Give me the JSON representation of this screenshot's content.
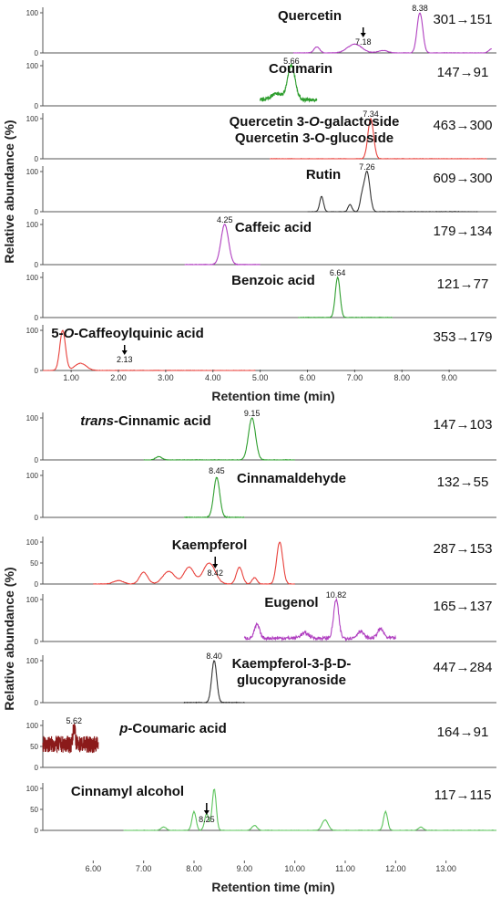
{
  "figure": {
    "panels": [
      {
        "ylabel": "Relative abundance (%)",
        "xlabel": "Retention time (min)",
        "xticks": [
          "1.00",
          "2.00",
          "3.00",
          "4.00",
          "5.00",
          "6.00",
          "7.00",
          "8.00",
          "9.00"
        ],
        "xlim": [
          0.4,
          10.0
        ]
      },
      {
        "ylabel": "Relative abundance (%)",
        "xlabel": "Retention time (min)",
        "xticks": [
          "6.00",
          "7.00",
          "8.00",
          "9.00",
          "10.00",
          "11.00",
          "12.00",
          "13.00"
        ],
        "xlim": [
          5.0,
          14.0
        ]
      }
    ]
  },
  "colors": {
    "purple": "#b03fc0",
    "green": "#2e9e2e",
    "red": "#e8413b",
    "black": "#333333",
    "darkred": "#8b1a1a",
    "lightgreen": "#5cc45c"
  },
  "chart_data": [
    {
      "type": "line",
      "panel": 0,
      "compound": "Quercetin",
      "compound_italic": "",
      "compound_line2": "",
      "transition": "301→151",
      "color": "purple",
      "yticks": [
        "100",
        "0"
      ],
      "xrange": [
        5.7,
        9.9
      ],
      "peaks": [
        {
          "x": 8.38,
          "y": 100,
          "w": 0.06
        },
        {
          "x": 7.0,
          "y": 22,
          "w": 0.15
        },
        {
          "x": 6.2,
          "y": 15,
          "w": 0.06
        },
        {
          "x": 7.6,
          "y": 6,
          "w": 0.1
        },
        {
          "x": 9.9,
          "y": 10,
          "w": 0.06
        }
      ],
      "labels": [
        {
          "text": "8.38",
          "x": 8.38
        },
        {
          "text": "7.18",
          "x": 7.18,
          "arrow": true
        }
      ]
    },
    {
      "type": "line",
      "panel": 0,
      "compound": "Coumarin",
      "compound_italic": "",
      "compound_line2": "",
      "transition": "147→91",
      "color": "green",
      "yticks": [
        "100",
        "0"
      ],
      "xrange": [
        5.0,
        6.2
      ],
      "noisy": true,
      "baseline": 15,
      "peaks": [
        {
          "x": 5.66,
          "y": 100,
          "w": 0.08
        },
        {
          "x": 5.35,
          "y": 30,
          "w": 0.12
        }
      ],
      "labels": [
        {
          "text": "5.66",
          "x": 5.66
        }
      ]
    },
    {
      "type": "line",
      "panel": 0,
      "compound": "Quercetin 3-",
      "compound_italic": "O",
      "compound_tail": "-galactoside",
      "compound_line2": "Quercetin 3-O-glucoside",
      "transition": "463→300",
      "color": "red",
      "yticks": [
        "100",
        "0"
      ],
      "xrange": [
        5.2,
        9.8
      ],
      "peaks": [
        {
          "x": 7.34,
          "y": 100,
          "w": 0.06
        }
      ],
      "labels": [
        {
          "text": "7.34",
          "x": 7.34
        }
      ]
    },
    {
      "type": "line",
      "panel": 0,
      "compound": "Rutin",
      "compound_italic": "",
      "compound_line2": "",
      "transition": "609→300",
      "color": "black",
      "yticks": [
        "100",
        "0"
      ],
      "xrange": [
        6.0,
        9.6
      ],
      "peaks": [
        {
          "x": 7.26,
          "y": 100,
          "w": 0.06
        },
        {
          "x": 6.3,
          "y": 38,
          "w": 0.04
        },
        {
          "x": 6.9,
          "y": 18,
          "w": 0.04
        },
        {
          "x": 7.15,
          "y": 30,
          "w": 0.04
        }
      ],
      "labels": [
        {
          "text": "7.26",
          "x": 7.26
        }
      ]
    },
    {
      "type": "line",
      "panel": 0,
      "compound": "Caffeic acid",
      "compound_italic": "",
      "compound_line2": "",
      "transition": "179→134",
      "color": "purple",
      "yticks": [
        "100",
        "0"
      ],
      "xrange": [
        3.4,
        5.0
      ],
      "peaks": [
        {
          "x": 4.25,
          "y": 100,
          "w": 0.08
        }
      ],
      "labels": [
        {
          "text": "4.25",
          "x": 4.25
        }
      ]
    },
    {
      "type": "line",
      "panel": 0,
      "compound": "Benzoic acid",
      "compound_italic": "",
      "compound_line2": "",
      "transition": "121→77",
      "color": "green",
      "yticks": [
        "100",
        "0"
      ],
      "xrange": [
        5.8,
        7.8
      ],
      "peaks": [
        {
          "x": 6.64,
          "y": 100,
          "w": 0.05
        }
      ],
      "labels": [
        {
          "text": "6.64",
          "x": 6.64
        }
      ]
    },
    {
      "type": "line",
      "panel": 0,
      "compound": "5-",
      "compound_italic": "O",
      "compound_tail": "-Caffeoylquinic acid",
      "compound_line2": "",
      "transition": "353→179",
      "color": "red",
      "yticks": [
        "100",
        "0"
      ],
      "xrange": [
        0.4,
        4.9
      ],
      "peaks": [
        {
          "x": 0.82,
          "y": 100,
          "w": 0.06
        },
        {
          "x": 1.2,
          "y": 18,
          "w": 0.12
        }
      ],
      "labels": [
        {
          "text": "2.13",
          "x": 2.13,
          "arrow": true
        }
      ]
    },
    {
      "type": "line",
      "panel": 1,
      "compound": "",
      "compound_italic": "trans",
      "compound_tail": "-Cinnamic acid",
      "compound_line2": "",
      "transition": "147→103",
      "color": "green",
      "yticks": [
        "100",
        "0"
      ],
      "xrange": [
        7.0,
        10.0
      ],
      "peaks": [
        {
          "x": 9.15,
          "y": 100,
          "w": 0.07
        },
        {
          "x": 7.3,
          "y": 8,
          "w": 0.06
        }
      ],
      "labels": [
        {
          "text": "9.15",
          "x": 9.15
        }
      ]
    },
    {
      "type": "line",
      "panel": 1,
      "compound": "Cinnamaldehyde",
      "compound_italic": "",
      "compound_line2": "",
      "transition": "132→55",
      "color": "green",
      "yticks": [
        "100",
        "0"
      ],
      "xrange": [
        7.8,
        9.0
      ],
      "peaks": [
        {
          "x": 8.45,
          "y": 95,
          "w": 0.06
        }
      ],
      "labels": [
        {
          "text": "8.45",
          "x": 8.45
        }
      ]
    },
    {
      "type": "line",
      "panel": 1,
      "compound": "Kaempferol",
      "compound_italic": "",
      "compound_line2": "",
      "transition": "287→153",
      "color": "red",
      "yticks": [
        "100",
        "50",
        "0"
      ],
      "xrange": [
        6.0,
        10.0
      ],
      "peaks": [
        {
          "x": 9.7,
          "y": 100,
          "w": 0.06
        },
        {
          "x": 8.3,
          "y": 50,
          "w": 0.12
        },
        {
          "x": 7.9,
          "y": 40,
          "w": 0.1
        },
        {
          "x": 7.5,
          "y": 30,
          "w": 0.12
        },
        {
          "x": 7.0,
          "y": 28,
          "w": 0.08
        },
        {
          "x": 8.9,
          "y": 40,
          "w": 0.06
        },
        {
          "x": 9.2,
          "y": 15,
          "w": 0.05
        },
        {
          "x": 6.5,
          "y": 8,
          "w": 0.1
        }
      ],
      "labels": [
        {
          "text": "8.42",
          "x": 8.42,
          "arrow": true
        }
      ]
    },
    {
      "type": "line",
      "panel": 1,
      "compound": "Eugenol",
      "compound_italic": "",
      "compound_line2": "",
      "transition": "165→137",
      "color": "purple",
      "yticks": [
        "100",
        "0"
      ],
      "xrange": [
        9.0,
        12.0
      ],
      "noisy": true,
      "baseline": 8,
      "peaks": [
        {
          "x": 10.82,
          "y": 100,
          "w": 0.05
        },
        {
          "x": 9.25,
          "y": 40,
          "w": 0.05
        },
        {
          "x": 10.2,
          "y": 20,
          "w": 0.08
        },
        {
          "x": 11.3,
          "y": 25,
          "w": 0.06
        },
        {
          "x": 11.7,
          "y": 30,
          "w": 0.06
        }
      ],
      "labels": [
        {
          "text": "10.82",
          "x": 10.82
        }
      ]
    },
    {
      "type": "line",
      "panel": 1,
      "compound": "Kaempferol-3-β-D-",
      "compound_italic": "",
      "compound_line2": "glucopyranoside",
      "transition": "447→284",
      "color": "black",
      "yticks": [
        "100",
        "0"
      ],
      "xrange": [
        7.8,
        9.0
      ],
      "peaks": [
        {
          "x": 8.4,
          "y": 100,
          "w": 0.05
        }
      ],
      "labels": [
        {
          "text": "8.40",
          "x": 8.4
        }
      ]
    },
    {
      "type": "line",
      "panel": 1,
      "compound": "",
      "compound_italic": "p",
      "compound_tail": "-Coumaric acid",
      "compound_line2": "",
      "transition": "164→91",
      "color": "darkred",
      "yticks": [
        "100",
        "50",
        "0"
      ],
      "xrange": [
        5.0,
        6.1
      ],
      "noisy": true,
      "baseline": 55,
      "noise_amp": 40,
      "peaks": [
        {
          "x": 5.62,
          "y": 100,
          "w": 0.02
        }
      ],
      "labels": [
        {
          "text": "5.62",
          "x": 5.62
        }
      ]
    },
    {
      "type": "line",
      "panel": 1,
      "compound": "Cinnamyl alcohol",
      "compound_italic": "",
      "compound_line2": "",
      "transition": "117→115",
      "color": "lightgreen",
      "yticks": [
        "100",
        "50",
        "0"
      ],
      "xrange": [
        6.6,
        14.0
      ],
      "peaks": [
        {
          "x": 8.4,
          "y": 100,
          "w": 0.04
        },
        {
          "x": 8.0,
          "y": 45,
          "w": 0.04
        },
        {
          "x": 8.25,
          "y": 40,
          "w": 0.04
        },
        {
          "x": 10.6,
          "y": 25,
          "w": 0.06
        },
        {
          "x": 11.8,
          "y": 45,
          "w": 0.04
        },
        {
          "x": 9.2,
          "y": 12,
          "w": 0.05
        },
        {
          "x": 7.4,
          "y": 8,
          "w": 0.05
        },
        {
          "x": 12.5,
          "y": 8,
          "w": 0.05
        }
      ],
      "labels": [
        {
          "text": "8.25",
          "x": 8.25,
          "arrow": true
        }
      ]
    }
  ]
}
